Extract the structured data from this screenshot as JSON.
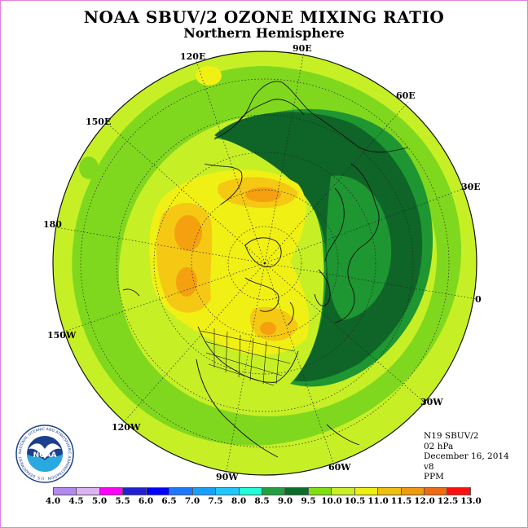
{
  "title": "NOAA SBUV/2 OZONE MIXING RATIO",
  "subtitle": "Northern Hemisphere",
  "longitude_labels": {
    "lon_90E": "90E",
    "lon_60E": "60E",
    "lon_30E": "30E",
    "lon_0": "0",
    "lon_30W": "30W",
    "lon_60W": "60W",
    "lon_90W": "90W",
    "lon_120W": "120W",
    "lon_150W": "150W",
    "lon_180": "180",
    "lon_150E": "150E",
    "lon_120E": "120E"
  },
  "info": {
    "satellite": "N19 SBUV/2",
    "pressure": "02 hPa",
    "date": "December 16, 2014",
    "version": "v8",
    "units": "PPM"
  },
  "logo": {
    "text": "NOAA",
    "ring_text": "NATIONAL OCEANIC AND ATMOSPHERIC ADMINISTRATION · U.S. DEPARTMENT OF COMMERCE"
  },
  "colorbar": {
    "ticks": [
      "4.0",
      "4.5",
      "5.0",
      "5.5",
      "6.0",
      "6.5",
      "7.0",
      "7.5",
      "8.0",
      "8.5",
      "9.0",
      "9.5",
      "10.0",
      "10.5",
      "11.0",
      "11.5",
      "12.0",
      "12.5",
      "13.0"
    ],
    "colors": [
      "#b388f0",
      "#dcb4f4",
      "#ff00ff",
      "#2020d0",
      "#0000ff",
      "#1e78ff",
      "#18a0ff",
      "#20c8ff",
      "#20ffd8",
      "#22a040",
      "#0a6e2a",
      "#80e010",
      "#c8f028",
      "#f0f010",
      "#f0c010",
      "#f09a10",
      "#f06a10",
      "#ff1010",
      "#8b5a2b"
    ]
  },
  "map_colors": {
    "yellow_green": "#c6f025",
    "light_green": "#80d81e",
    "medium_green": "#1e9632",
    "dark_green": "#0f6428",
    "yellow": "#f0f014",
    "light_orange": "#f5c814",
    "orange": "#f5a00f"
  }
}
